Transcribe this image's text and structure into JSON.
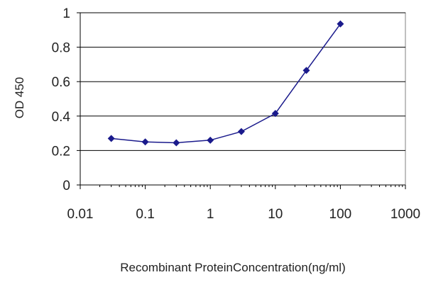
{
  "chart_data": {
    "type": "line",
    "title": "",
    "xlabel": "Recombinant ProteinConcentration(ng/ml)",
    "ylabel": "OD 450",
    "x_scale": "log",
    "xlim": [
      0.01,
      1000
    ],
    "ylim": [
      0,
      1
    ],
    "x_ticks": [
      0.01,
      0.1,
      1,
      10,
      100,
      1000
    ],
    "x_tick_labels": [
      "0.01",
      "0.1",
      "1",
      "10",
      "100",
      "1000"
    ],
    "y_ticks": [
      0,
      0.2,
      0.4,
      0.6,
      0.8,
      1
    ],
    "y_tick_labels": [
      "0",
      "0.2",
      "0.4",
      "0.6",
      "0.8",
      "1"
    ],
    "grid": "horizontal",
    "legend": "none",
    "series": [
      {
        "color": "#1a1a8c",
        "marker": "diamond",
        "x": [
          0.03,
          0.1,
          0.3,
          1,
          3,
          10,
          30,
          100
        ],
        "y": [
          0.27,
          0.25,
          0.245,
          0.26,
          0.31,
          0.415,
          0.665,
          0.935
        ]
      }
    ]
  }
}
